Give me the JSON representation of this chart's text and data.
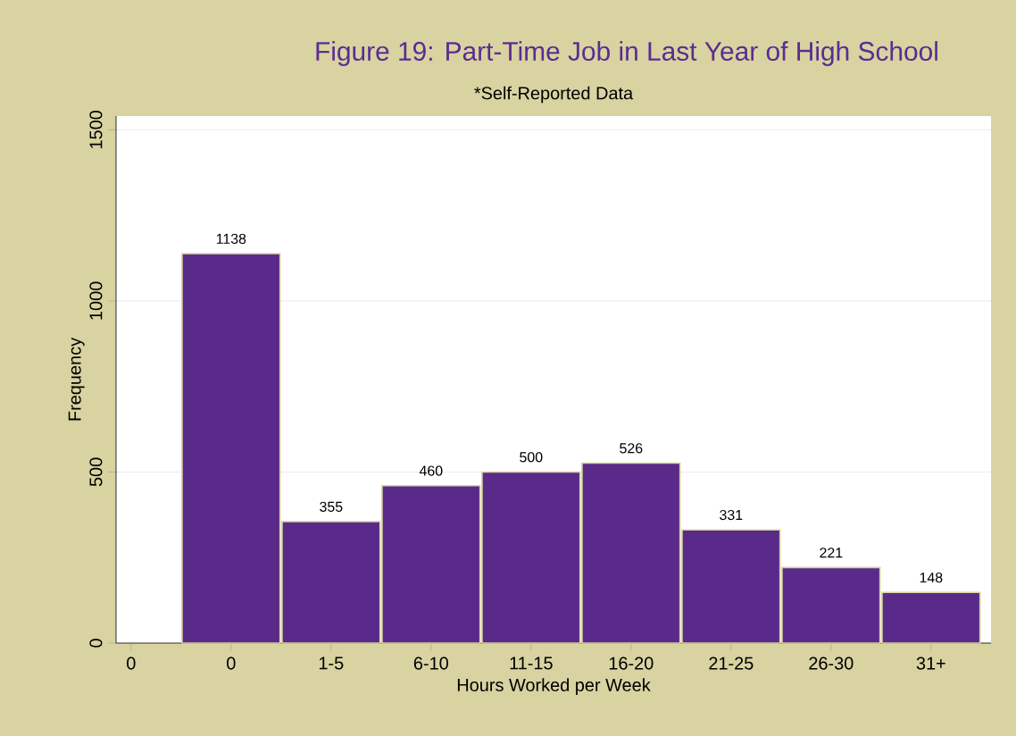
{
  "chart_data": {
    "type": "bar",
    "title": "Figure 19: Part-Time Job in Last Year of High School",
    "subtitle": "*Self-Reported Data",
    "xlabel": "Hours Worked per Week",
    "ylabel": "Frequency",
    "categories": [
      "0",
      "0",
      "1-5",
      "6-10",
      "11-15",
      "16-20",
      "21-25",
      "26-30",
      "31+"
    ],
    "values": [
      null,
      1138,
      355,
      460,
      500,
      526,
      331,
      221,
      148
    ],
    "color": "#5a2a8a",
    "ylim": [
      0,
      1540
    ],
    "yticks": [
      0,
      500,
      1000,
      1500
    ],
    "grid": "y",
    "data_labels": true
  }
}
